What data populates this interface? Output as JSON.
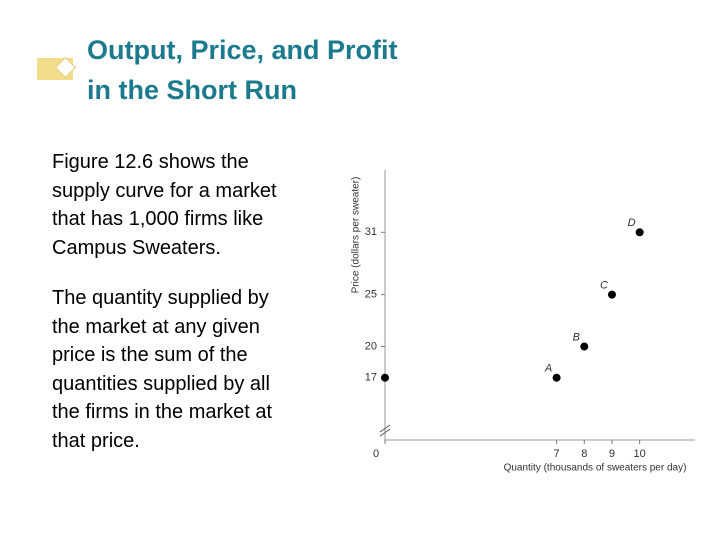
{
  "slide": {
    "title_lines": [
      "Output, Price, and Profit",
      "in the Short Run"
    ],
    "paragraphs": [
      [
        "Figure 12.6 shows the",
        "supply curve for a market",
        "that has 1,000 firms like",
        "Campus Sweaters."
      ],
      [
        "The quantity supplied by",
        "the market at any given",
        "price is the sum of the",
        "quantities supplied by all",
        "the firms in the market at",
        "that price."
      ]
    ]
  },
  "chart_data": {
    "type": "scatter",
    "x_label": "Quantity (thousands of sweaters per day)",
    "y_label": "Price (dollars per sweater)",
    "x": [
      0,
      7,
      8,
      9,
      10
    ],
    "values": [
      17,
      17,
      20,
      25,
      31
    ],
    "point_labels": [
      null,
      "A",
      "B",
      "C",
      "D"
    ],
    "color": "#000000",
    "xlim": [
      0,
      12
    ],
    "ylim": [
      0,
      37
    ],
    "xbreak": [
      0,
      0.8
    ],
    "ybreak": [
      0,
      11
    ],
    "xticks": [
      0,
      7,
      8,
      9,
      10
    ],
    "yticks": [
      17,
      20,
      25,
      31
    ],
    "grid": false
  }
}
